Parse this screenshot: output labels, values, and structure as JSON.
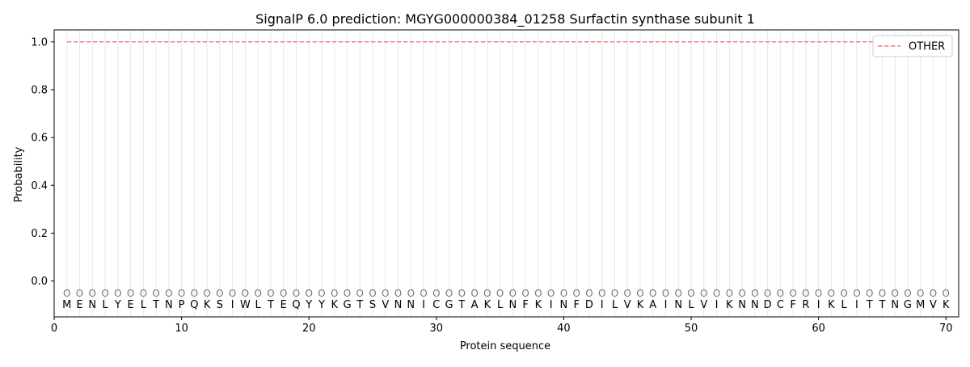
{
  "chart_data": {
    "type": "line",
    "title": "SignalP 6.0 prediction: MGYG000000384_01258 Surfactin synthase subunit 1",
    "xlabel": "Protein sequence",
    "ylabel": "Probability",
    "xlim": [
      0,
      71
    ],
    "ylim": [
      -0.15,
      1.05
    ],
    "xticks": [
      0,
      10,
      20,
      30,
      40,
      50,
      60,
      70
    ],
    "yticks": [
      0.0,
      0.2,
      0.4,
      0.6,
      0.8,
      1.0
    ],
    "ytick_labels": [
      "0.0",
      "0.2",
      "0.4",
      "0.6",
      "0.8",
      "1.0"
    ],
    "grid": "vertical lines at each residue",
    "legend": {
      "placement": "top-right",
      "entries": [
        "OTHER"
      ]
    },
    "series": [
      {
        "name": "OTHER",
        "color": "#f08080",
        "style": "dashed",
        "x_start": 1,
        "x_end": 70,
        "value": 1.0
      }
    ],
    "prediction_label": "O",
    "prediction_y": -0.05,
    "sequence": [
      "M",
      "E",
      "N",
      "L",
      "Y",
      "E",
      "L",
      "T",
      "N",
      "P",
      "Q",
      "K",
      "S",
      "I",
      "W",
      "L",
      "T",
      "E",
      "Q",
      "Y",
      "Y",
      "K",
      "G",
      "T",
      "S",
      "V",
      "N",
      "N",
      "I",
      "C",
      "G",
      "T",
      "A",
      "K",
      "L",
      "N",
      "F",
      "K",
      "I",
      "N",
      "F",
      "D",
      "I",
      "L",
      "V",
      "K",
      "A",
      "I",
      "N",
      "L",
      "V",
      "I",
      "K",
      "N",
      "N",
      "D",
      "C",
      "F",
      "R",
      "I",
      "K",
      "L",
      "I",
      "T",
      "T",
      "N",
      "G",
      "M",
      "V",
      "K"
    ]
  }
}
